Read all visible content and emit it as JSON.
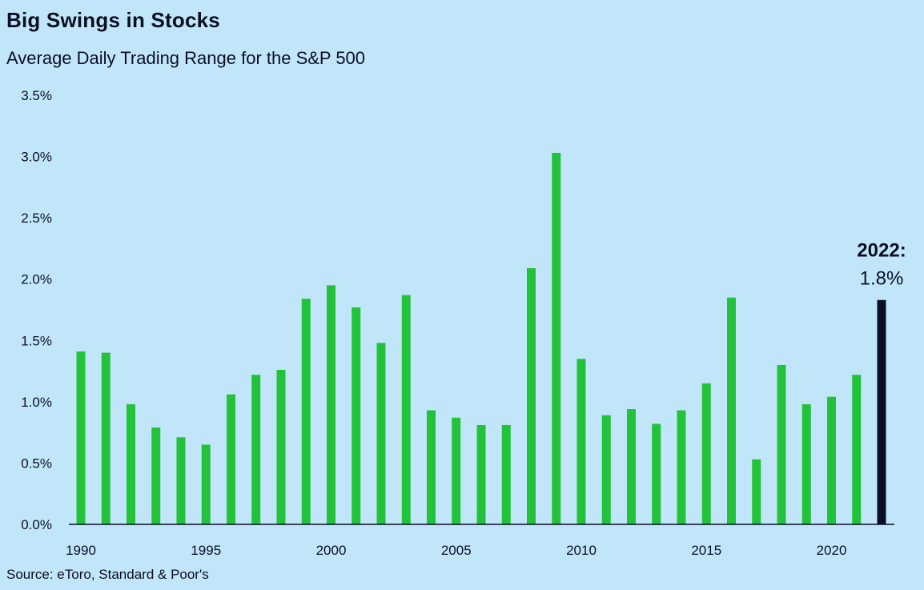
{
  "chart_data": {
    "type": "bar",
    "title": "Big Swings in Stocks",
    "subtitle": "Average Daily Trading Range for the S&P 500",
    "source": "Source: eToro, Standard & Poor's",
    "categories": [
      1990,
      1991,
      1992,
      1993,
      1994,
      1995,
      1996,
      1997,
      1998,
      1999,
      2000,
      2001,
      2002,
      2003,
      2004,
      2005,
      2006,
      2007,
      2008,
      2009,
      2010,
      2011,
      2012,
      2013,
      2014,
      2015,
      2016,
      2017,
      2018,
      2019,
      2020,
      2021,
      2022
    ],
    "values": [
      1.41,
      1.4,
      0.98,
      0.79,
      0.71,
      0.65,
      1.06,
      1.22,
      1.26,
      1.84,
      1.95,
      1.77,
      1.48,
      1.87,
      0.93,
      0.87,
      0.81,
      0.81,
      2.09,
      3.03,
      1.35,
      0.89,
      0.94,
      0.82,
      0.93,
      1.15,
      1.85,
      0.53,
      1.3,
      0.98,
      1.04,
      1.22,
      1.83
    ],
    "x_tick_labels": [
      "1990",
      "1995",
      "2000",
      "2005",
      "2010",
      "2015",
      "2020"
    ],
    "y_tick_labels": [
      "0.0%",
      "0.5%",
      "1.0%",
      "1.5%",
      "2.0%",
      "2.5%",
      "3.0%",
      "3.5%"
    ],
    "ylim": [
      0,
      3.5
    ],
    "bar_color": "#22c33a",
    "highlight_color": "#0b0f24",
    "highlight_category": 2022,
    "annotation": {
      "label": "2022:",
      "value": "1.8%"
    },
    "grid": false
  }
}
